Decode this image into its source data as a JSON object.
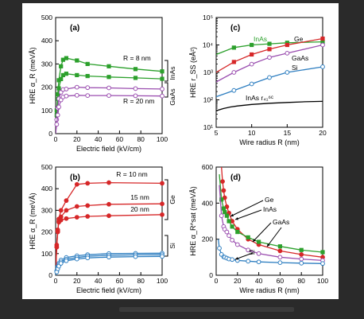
{
  "colors": {
    "green": "#2ca02c",
    "red": "#d62728",
    "purple": "#9b4fb0",
    "blue": "#2f7fc1",
    "black": "#000000"
  },
  "chart_data": [
    {
      "id": "a",
      "type": "line",
      "panel_label": "(a)",
      "xlabel": "Electric field (kV/cm)",
      "ylabel": "HRE α_R (meVÅ)",
      "xlim": [
        0,
        100
      ],
      "ylim": [
        0,
        500
      ],
      "xticks": [
        0,
        20,
        40,
        60,
        80,
        100
      ],
      "yticks": [
        0,
        100,
        200,
        300,
        400,
        500
      ],
      "annotations": [
        "R = 8 nm",
        "R = 20 nm"
      ],
      "bracket_labels": [
        "GaAs",
        "InAs"
      ],
      "series": [
        {
          "color": "green",
          "marker": "square",
          "x": [
            0,
            1,
            2,
            3,
            5,
            7,
            10,
            20,
            30,
            50,
            75,
            100
          ],
          "y": [
            0,
            100,
            170,
            230,
            290,
            318,
            325,
            315,
            300,
            290,
            278,
            268
          ]
        },
        {
          "color": "green",
          "marker": "square",
          "x": [
            0,
            1,
            2,
            3,
            5,
            7,
            10,
            20,
            30,
            50,
            75,
            100
          ],
          "y": [
            0,
            80,
            150,
            195,
            235,
            252,
            258,
            252,
            248,
            244,
            240,
            236
          ]
        },
        {
          "color": "purple",
          "marker": "circle",
          "x": [
            0,
            1,
            2,
            3,
            5,
            7,
            10,
            20,
            30,
            50,
            75,
            100
          ],
          "y": [
            0,
            60,
            110,
            150,
            178,
            190,
            192,
            200,
            198,
            197,
            194,
            192
          ]
        },
        {
          "color": "purple",
          "marker": "circle",
          "x": [
            0,
            1,
            2,
            3,
            5,
            7,
            10,
            20,
            30,
            50,
            75,
            100
          ],
          "y": [
            0,
            40,
            80,
            115,
            145,
            158,
            162,
            165,
            164,
            164,
            163,
            162
          ]
        }
      ]
    },
    {
      "id": "c",
      "type": "line",
      "panel_label": "(c)",
      "xlabel": "Wire radius R (nm)",
      "ylabel": "HRE r_SS (eÅ²)",
      "xlim": [
        5,
        20
      ],
      "ylim_log10": [
        1,
        5
      ],
      "yscale": "log",
      "xticks": [
        5,
        10,
        15,
        20
      ],
      "ytick_labels": [
        "10¹",
        "10²",
        "10³",
        "10⁴",
        "10⁵"
      ],
      "annotations": [
        "InAs",
        "Ge",
        "GaAs",
        "Si",
        "InAs r₄₁⁶ᶜ"
      ],
      "series": [
        {
          "name": "InAs",
          "color": "green",
          "marker": "square",
          "x": [
            5,
            7.5,
            10,
            12.5,
            15,
            20
          ],
          "y": [
            4500,
            8000,
            10000,
            11000,
            12000,
            13000
          ]
        },
        {
          "name": "Ge",
          "color": "red",
          "marker": "square",
          "x": [
            5,
            7.5,
            10,
            12.5,
            15,
            20
          ],
          "y": [
            1000,
            2400,
            4500,
            7000,
            10000,
            17000
          ]
        },
        {
          "name": "GaAs",
          "color": "purple",
          "marker": "circle",
          "x": [
            5,
            7.5,
            10,
            12.5,
            15,
            20
          ],
          "y": [
            450,
            1000,
            2000,
            3500,
            5000,
            10000
          ]
        },
        {
          "name": "Si",
          "color": "blue",
          "marker": "circle",
          "x": [
            5,
            7.5,
            10,
            12.5,
            15,
            20
          ],
          "y": [
            130,
            220,
            380,
            650,
            1000,
            1600
          ]
        },
        {
          "name": "InAs r₄₁⁶ᶜ",
          "color": "black",
          "marker": "none",
          "x": [
            5,
            6,
            7,
            8,
            10,
            12.5,
            15,
            17.5,
            20
          ],
          "y": [
            40,
            48,
            55,
            60,
            68,
            75,
            80,
            85,
            88
          ]
        }
      ]
    },
    {
      "id": "b",
      "type": "line",
      "panel_label": "(b)",
      "xlabel": "Electric field (kV/cm)",
      "ylabel": "HRE α_R (meVÅ)",
      "xlim": [
        0,
        100
      ],
      "ylim": [
        0,
        500
      ],
      "xticks": [
        0,
        20,
        40,
        60,
        80,
        100
      ],
      "yticks": [
        0,
        100,
        200,
        300,
        400,
        500
      ],
      "annotations": [
        "R = 10 nm",
        "15 nm",
        "20 nm"
      ],
      "bracket_labels": [
        "Ge",
        "Si"
      ],
      "series": [
        {
          "color": "red",
          "marker": "circle",
          "x": [
            0,
            1,
            2,
            3,
            5,
            10,
            20,
            30,
            50,
            100
          ],
          "y": [
            0,
            130,
            200,
            260,
            300,
            345,
            420,
            425,
            428,
            425
          ]
        },
        {
          "color": "red",
          "marker": "circle",
          "x": [
            0,
            1,
            2,
            3,
            5,
            10,
            20,
            30,
            50,
            100
          ],
          "y": [
            0,
            130,
            205,
            250,
            270,
            300,
            318,
            322,
            328,
            330
          ]
        },
        {
          "color": "red",
          "marker": "circle",
          "x": [
            0,
            1,
            2,
            3,
            5,
            10,
            20,
            30,
            50,
            100
          ],
          "y": [
            0,
            140,
            210,
            245,
            255,
            262,
            268,
            272,
            275,
            280
          ]
        },
        {
          "color": "blue",
          "marker": "circle",
          "x": [
            0,
            1,
            2,
            3,
            5,
            10,
            20,
            30,
            50,
            75,
            100
          ],
          "y": [
            0,
            20,
            40,
            55,
            70,
            82,
            90,
            95,
            100,
            101,
            102
          ]
        },
        {
          "color": "blue",
          "marker": "circle",
          "x": [
            0,
            1,
            2,
            3,
            5,
            10,
            20,
            30,
            50,
            75,
            100
          ],
          "y": [
            0,
            18,
            35,
            48,
            62,
            74,
            82,
            88,
            92,
            94,
            95
          ]
        },
        {
          "color": "blue",
          "marker": "circle",
          "x": [
            0,
            1,
            2,
            3,
            5,
            10,
            20,
            30,
            50,
            75,
            100
          ],
          "y": [
            0,
            15,
            30,
            42,
            55,
            67,
            75,
            80,
            84,
            86,
            87
          ]
        }
      ]
    },
    {
      "id": "d",
      "type": "line",
      "panel_label": "(d)",
      "xlabel": "Wire radius R (nm)",
      "ylabel": "HRE α_R^sat (meVÅ)",
      "xlim": [
        0,
        100
      ],
      "ylim": [
        0,
        600
      ],
      "xticks": [
        0,
        20,
        40,
        60,
        80,
        100
      ],
      "yticks": [
        0,
        200,
        400,
        600
      ],
      "annotations": [
        "Ge",
        "InAs",
        "GaAs",
        "Si"
      ],
      "series": [
        {
          "name": "Ge",
          "color": "red",
          "marker": "circle",
          "x": [
            5,
            6,
            7,
            8,
            10,
            12,
            15,
            20,
            30,
            40,
            60,
            80,
            100
          ],
          "y": [
            600,
            520,
            470,
            430,
            380,
            345,
            300,
            255,
            200,
            170,
            135,
            115,
            100
          ]
        },
        {
          "name": "InAs",
          "color": "green",
          "marker": "square",
          "x": [
            3,
            5,
            7,
            8,
            10,
            12,
            15,
            20,
            30,
            40,
            60,
            80,
            100
          ],
          "y": [
            560,
            420,
            370,
            350,
            330,
            300,
            270,
            240,
            210,
            185,
            160,
            140,
            128
          ]
        },
        {
          "name": "GaAs",
          "color": "purple",
          "marker": "circle",
          "x": [
            3,
            5,
            7,
            8,
            10,
            12,
            15,
            20,
            30,
            40,
            60,
            80,
            100
          ],
          "y": [
            500,
            330,
            270,
            255,
            240,
            220,
            195,
            170,
            140,
            120,
            100,
            90,
            82
          ]
        },
        {
          "name": "Si",
          "color": "blue",
          "marker": "circle",
          "x": [
            2,
            3,
            5,
            7,
            8,
            10,
            12,
            15,
            20,
            30,
            40,
            60,
            80,
            100
          ],
          "y": [
            200,
            150,
            115,
            102,
            100,
            95,
            90,
            87,
            82,
            78,
            74,
            70,
            67,
            65
          ]
        }
      ]
    }
  ]
}
